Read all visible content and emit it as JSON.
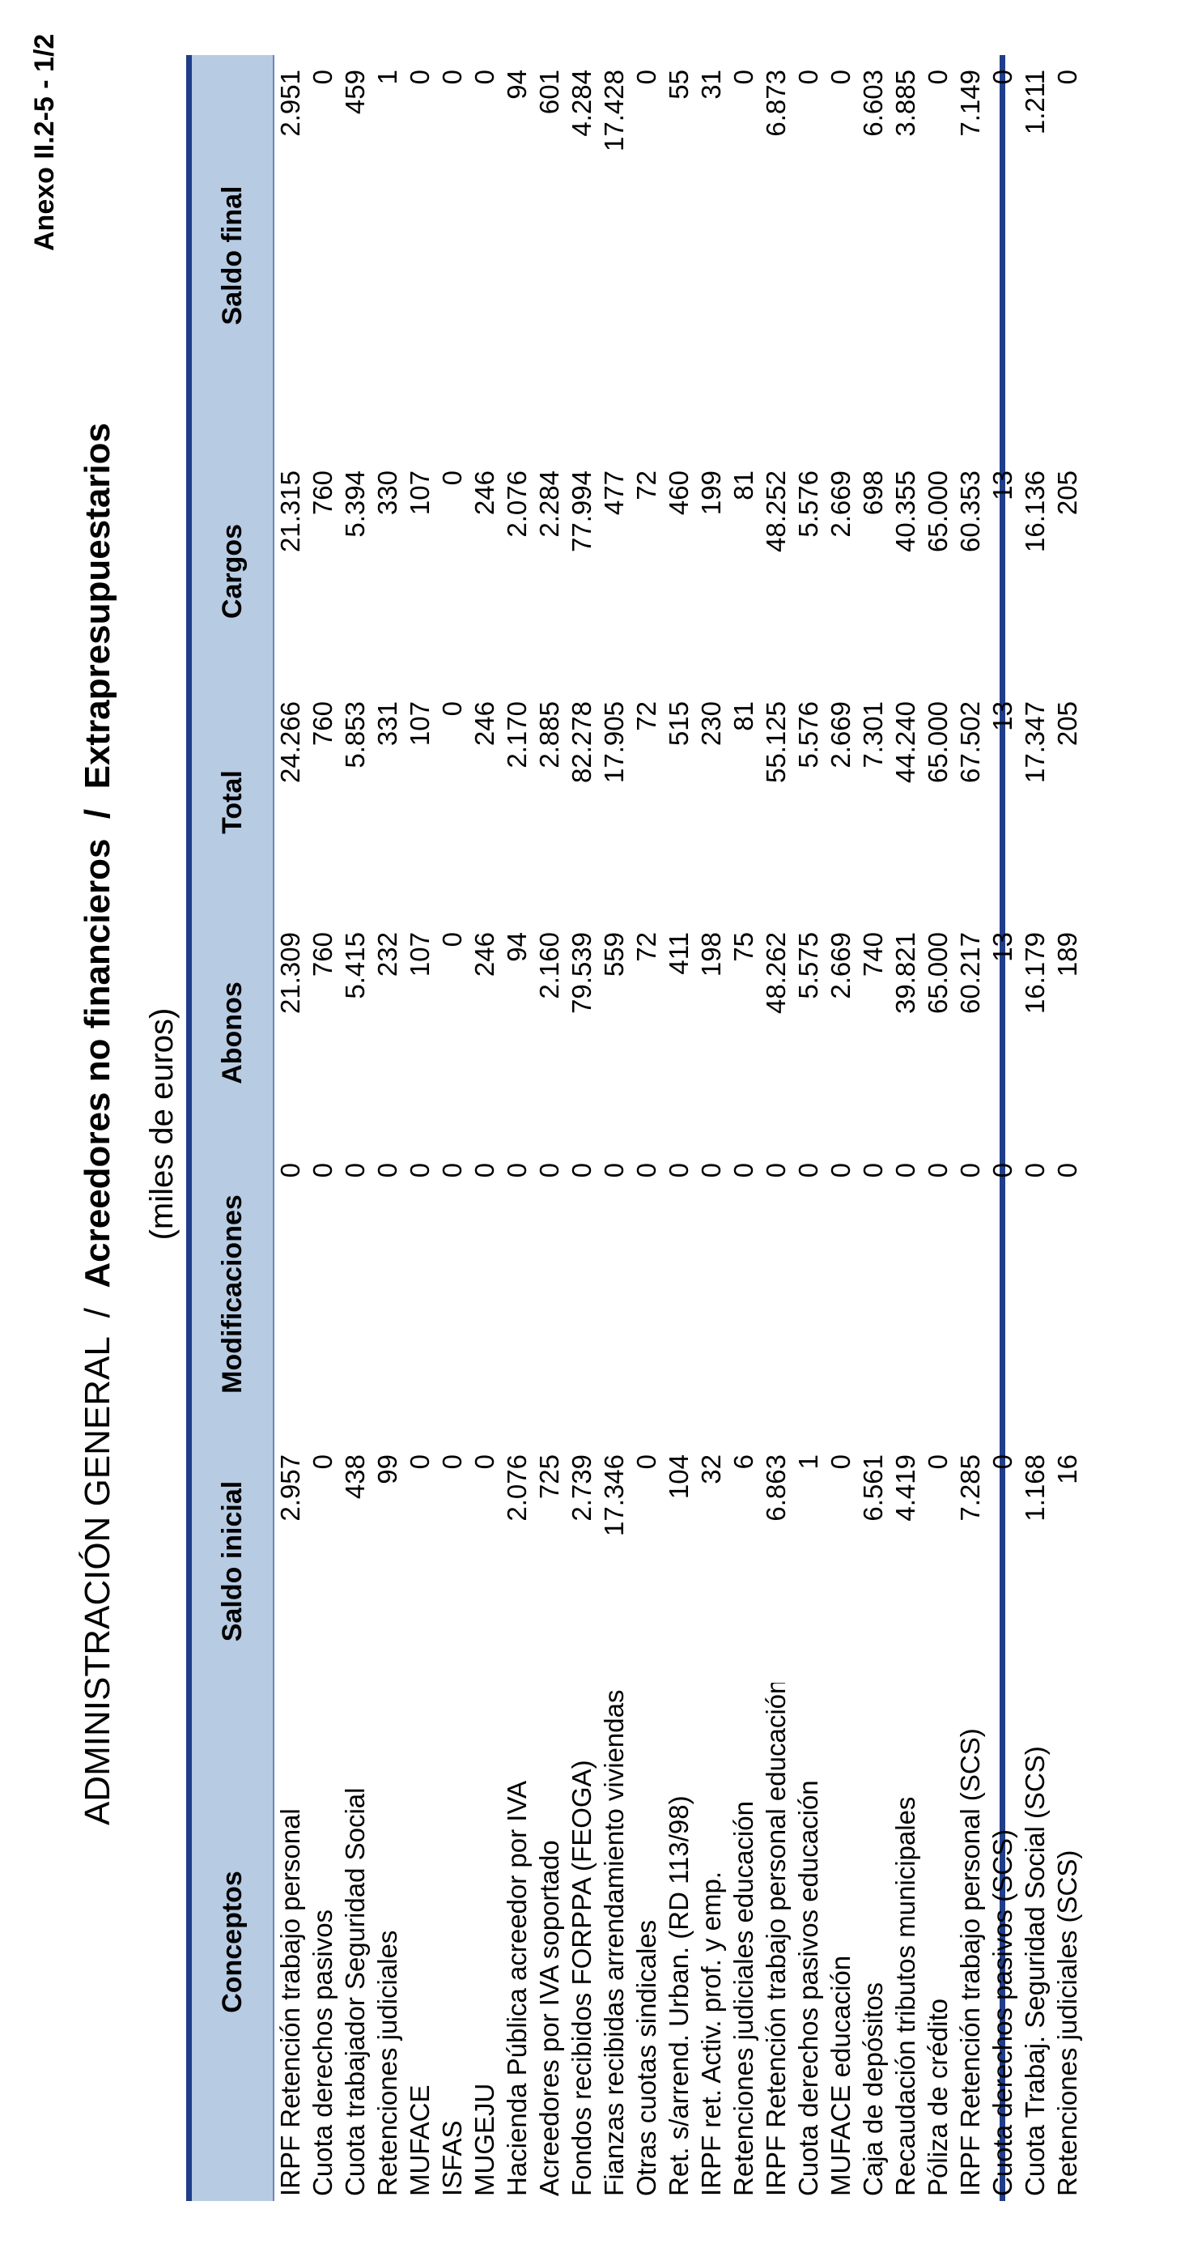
{
  "annex": "Anexo II.2-5 - 1/2",
  "title": {
    "part1": "ADMINISTRACIÓN GENERAL",
    "sep": "/",
    "part2": "Acreedores no financieros",
    "part3": "Extrapresupuestarios"
  },
  "subtitle": "(miles de euros)",
  "columns": [
    "Conceptos",
    "Saldo inicial",
    "Modificaciones",
    "Abonos",
    "Total",
    "Cargos",
    "Saldo final"
  ],
  "rows": [
    [
      "IRPF Retención trabajo personal",
      "2.957",
      "0",
      "21.309",
      "24.266",
      "21.315",
      "2.951"
    ],
    [
      "Cuota derechos pasivos",
      "0",
      "0",
      "760",
      "760",
      "760",
      "0"
    ],
    [
      "Cuota trabajador Seguridad Social",
      "438",
      "0",
      "5.415",
      "5.853",
      "5.394",
      "459"
    ],
    [
      "Retenciones judiciales",
      "99",
      "0",
      "232",
      "331",
      "330",
      "1"
    ],
    [
      "MUFACE",
      "0",
      "0",
      "107",
      "107",
      "107",
      "0"
    ],
    [
      "ISFAS",
      "0",
      "0",
      "0",
      "0",
      "0",
      "0"
    ],
    [
      "MUGEJU",
      "0",
      "0",
      "246",
      "246",
      "246",
      "0"
    ],
    [
      "Hacienda Pública acreedor por IVA",
      "2.076",
      "0",
      "94",
      "2.170",
      "2.076",
      "94"
    ],
    [
      "Acreedores por IVA soportado",
      "725",
      "0",
      "2.160",
      "2.885",
      "2.284",
      "601"
    ],
    [
      "Fondos recibidos FORPPA (FEOGA)",
      "2.739",
      "0",
      "79.539",
      "82.278",
      "77.994",
      "4.284"
    ],
    [
      "Fianzas recibidas arrendamiento viviendas",
      "17.346",
      "0",
      "559",
      "17.905",
      "477",
      "17.428"
    ],
    [
      "Otras cuotas sindicales",
      "0",
      "0",
      "72",
      "72",
      "72",
      "0"
    ],
    [
      "Ret. s/arrend. Urban. (RD 113/98)",
      "104",
      "0",
      "411",
      "515",
      "460",
      "55"
    ],
    [
      "IRPF ret. Activ. prof. y emp.",
      "32",
      "0",
      "198",
      "230",
      "199",
      "31"
    ],
    [
      "Retenciones judiciales educación",
      "6",
      "0",
      "75",
      "81",
      "81",
      "0"
    ],
    [
      "IRPF Retención trabajo personal educación",
      "6.863",
      "0",
      "48.262",
      "55.125",
      "48.252",
      "6.873"
    ],
    [
      "Cuota derechos pasivos educación",
      "1",
      "0",
      "5.575",
      "5.576",
      "5.576",
      "0"
    ],
    [
      "MUFACE educación",
      "0",
      "0",
      "2.669",
      "2.669",
      "2.669",
      "0"
    ],
    [
      "Caja de depósitos",
      "6.561",
      "0",
      "740",
      "7.301",
      "698",
      "6.603"
    ],
    [
      "Recaudación tributos municipales",
      "4.419",
      "0",
      "39.821",
      "44.240",
      "40.355",
      "3.885"
    ],
    [
      "Póliza de crédito",
      "0",
      "0",
      "65.000",
      "65.000",
      "65.000",
      "0"
    ],
    [
      "IRPF Retención trabajo personal (SCS)",
      "7.285",
      "0",
      "60.217",
      "67.502",
      "60.353",
      "7.149"
    ],
    [
      "Cuota derechos pasivos (SCS)",
      "0",
      "0",
      "13",
      "13",
      "13",
      "0"
    ],
    [
      "Cuota Trabaj. Seguridad Social (SCS)",
      "1.168",
      "0",
      "16.179",
      "17.347",
      "16.136",
      "1.211"
    ],
    [
      "Retenciones judiciales (SCS)",
      "16",
      "0",
      "189",
      "205",
      "205",
      "0"
    ]
  ]
}
